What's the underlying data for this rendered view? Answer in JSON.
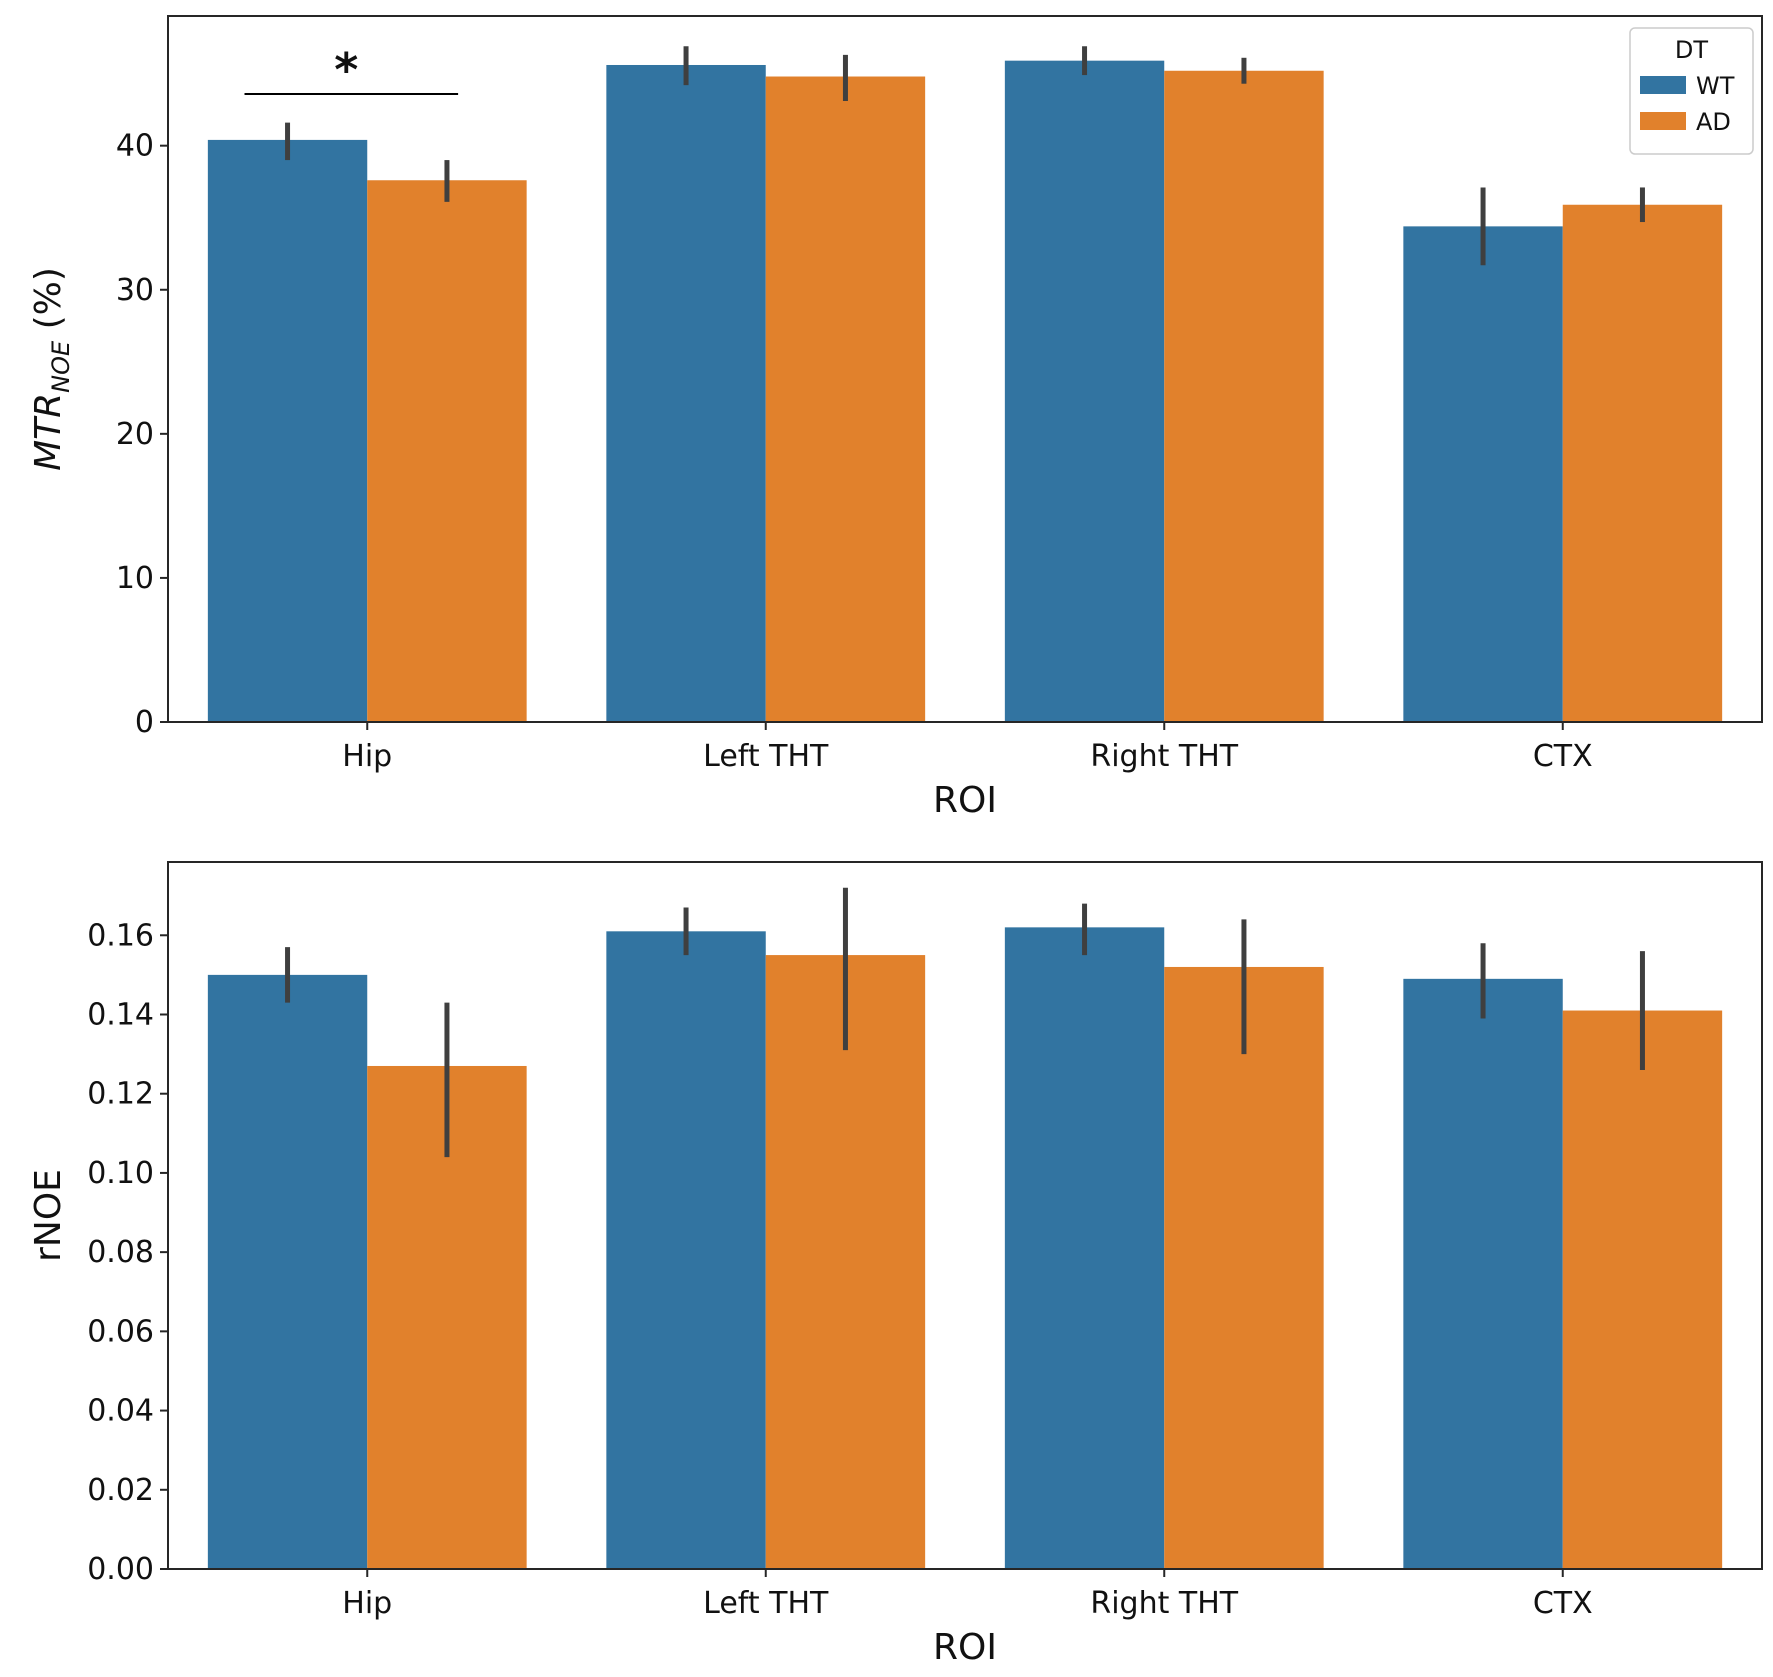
{
  "chart_data": [
    {
      "type": "bar",
      "categories": [
        "Hip",
        "Left THT",
        "Right THT",
        "CTX"
      ],
      "series": [
        {
          "name": "WT",
          "values": [
            40.4,
            45.6,
            45.9,
            34.4
          ],
          "error_low": [
            39.0,
            44.2,
            44.9,
            31.7
          ],
          "error_high": [
            41.6,
            46.9,
            46.9,
            37.1
          ]
        },
        {
          "name": "AD",
          "values": [
            37.6,
            44.8,
            45.2,
            35.9
          ],
          "error_low": [
            36.1,
            43.1,
            44.3,
            34.7
          ],
          "error_high": [
            39.0,
            46.3,
            46.1,
            37.1
          ]
        }
      ],
      "xlabel": "ROI",
      "ylabel": "MTR",
      "ylabel_subscript": "NOE",
      "ylabel_suffix": " (%)",
      "ylim": [
        0,
        49
      ],
      "yticks": [
        0,
        10,
        20,
        30,
        40
      ],
      "legend": {
        "title": "DT",
        "position": "top-right"
      },
      "significance": {
        "label": "*",
        "category": "Hip"
      },
      "grid": false
    },
    {
      "type": "bar",
      "categories": [
        "Hip",
        "Left THT",
        "Right THT",
        "CTX"
      ],
      "series": [
        {
          "name": "WT",
          "values": [
            0.15,
            0.161,
            0.162,
            0.149
          ],
          "error_low": [
            0.143,
            0.155,
            0.155,
            0.139
          ],
          "error_high": [
            0.157,
            0.167,
            0.168,
            0.158
          ]
        },
        {
          "name": "AD",
          "values": [
            0.127,
            0.155,
            0.152,
            0.141
          ],
          "error_low": [
            0.104,
            0.131,
            0.13,
            0.126
          ],
          "error_high": [
            0.143,
            0.172,
            0.164,
            0.156
          ]
        }
      ],
      "xlabel": "ROI",
      "ylabel": "rNOE",
      "ylim": [
        0,
        0.1785
      ],
      "yticks": [
        0.0,
        0.02,
        0.04,
        0.06,
        0.08,
        0.1,
        0.12,
        0.14,
        0.16
      ],
      "ytick_labels": [
        "0.00",
        "0.02",
        "0.04",
        "0.06",
        "0.08",
        "0.10",
        "0.12",
        "0.14",
        "0.16"
      ],
      "grid": false
    }
  ],
  "colors": {
    "WT": "#3274a1",
    "AD": "#e1812c",
    "errorbar": "#3f3f3f",
    "axis": "#262626"
  }
}
